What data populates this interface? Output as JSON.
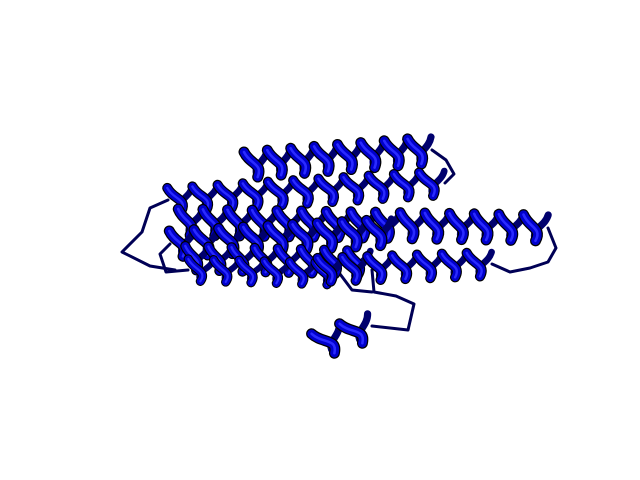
{
  "scene": {
    "subject": "protein-ribbon-cartoon",
    "style": "cartoon",
    "background_color": "#ffffff",
    "ribbon_color": "#0000cc",
    "ribbon_highlight": "#2a2aff",
    "ribbon_shadow": "#00006e",
    "outline_color": "#000000",
    "loop_color": "#000055",
    "helix_count": 8
  }
}
